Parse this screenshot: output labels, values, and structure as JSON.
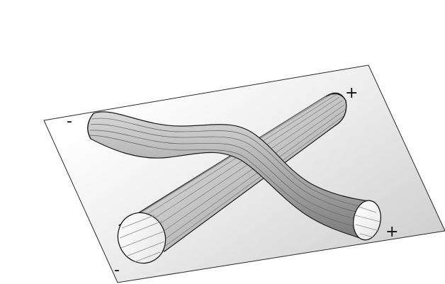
{
  "labels": {
    "straight_tube_near_end": "-",
    "straight_tube_far_end": "+",
    "curved_tube_near_end": "-",
    "curved_tube_far_end": "+"
  },
  "colors": {
    "plane_light": "#ffffff",
    "plane_dark": "#d2d2d2",
    "tube_light": "#f0f0f0",
    "tube_mid": "#b4b4b4",
    "tube_dark": "#6f6f6f",
    "outline": "#111111"
  }
}
